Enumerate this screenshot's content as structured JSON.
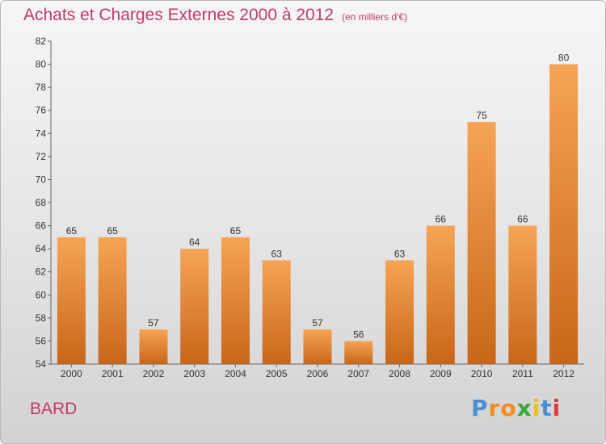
{
  "chart_data": {
    "type": "bar",
    "title": "Achats et Charges Externes 2000 à 2012",
    "subtitle": "(en milliers d'€)",
    "categories": [
      "2000",
      "2001",
      "2002",
      "2003",
      "2004",
      "2005",
      "2006",
      "2007",
      "2008",
      "2009",
      "2010",
      "2011",
      "2012"
    ],
    "values": [
      65,
      65,
      57,
      64,
      65,
      63,
      57,
      56,
      63,
      66,
      75,
      66,
      80
    ],
    "ylim": [
      54,
      82
    ],
    "yticks": [
      54,
      56,
      58,
      60,
      62,
      64,
      66,
      68,
      70,
      72,
      74,
      76,
      78,
      80,
      82
    ],
    "grid": false,
    "bar_color_top": "#f6a455",
    "bar_color_bottom": "#c86618"
  },
  "place": "BARD",
  "brand": {
    "text": "Proxiti",
    "letter_colors": [
      "#4a8fd6",
      "#f28c1e",
      "#f28c1e",
      "#3aa63a",
      "#e9c21a",
      "#4a8fd6",
      "#e23b3b"
    ]
  },
  "colors": {
    "title": "#c23b63",
    "axis": "#666666",
    "label": "#333333"
  }
}
